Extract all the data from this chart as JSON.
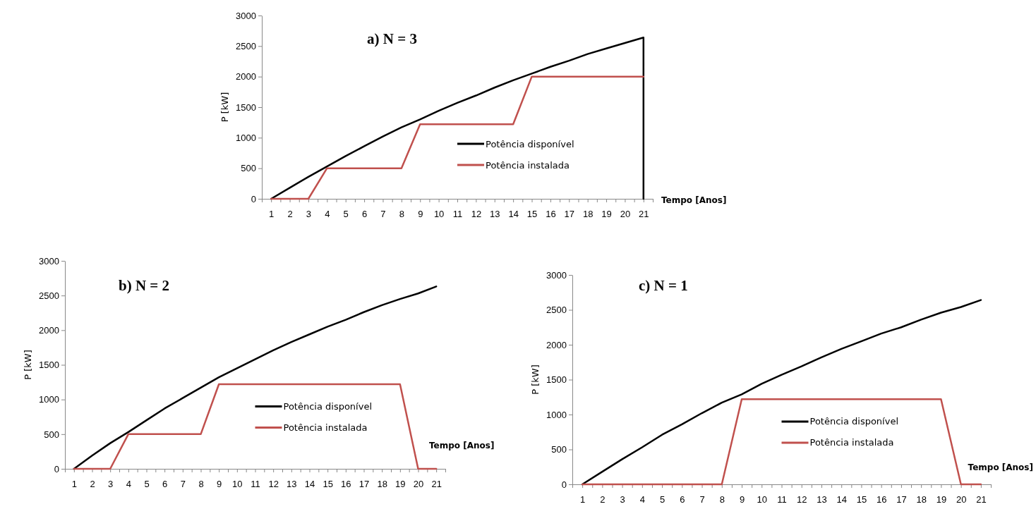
{
  "chart_data": [
    {
      "type": "line",
      "title": "a) N = 3",
      "xlabel": "Tempo [Anos]",
      "ylabel": "P [kW]",
      "xlim": [
        0.5,
        21.5
      ],
      "ylim": [
        0,
        3000
      ],
      "xticks": [
        1,
        2,
        3,
        4,
        5,
        6,
        7,
        8,
        9,
        10,
        11,
        12,
        13,
        14,
        15,
        16,
        17,
        18,
        19,
        20,
        21,
        {
          "value": 0.5,
          "label": null
        },
        {
          "value": 1.5,
          "label": null
        },
        {
          "value": 2.5,
          "label": null
        },
        {
          "value": 3.5,
          "label": null
        },
        {
          "value": 4.5,
          "label": null
        },
        {
          "value": 5.5,
          "label": null
        },
        {
          "value": 6.5,
          "label": null
        },
        {
          "value": 7.5,
          "label": null
        },
        {
          "value": 8.5,
          "label": null
        },
        {
          "value": 9.5,
          "label": null
        },
        {
          "value": 10.5,
          "label": null
        },
        {
          "value": 11.5,
          "label": null
        },
        {
          "value": 12.5,
          "label": null
        },
        {
          "value": 13.5,
          "label": null
        },
        {
          "value": 14.5,
          "label": null
        },
        {
          "value": 15.5,
          "label": null
        },
        {
          "value": 16.5,
          "label": null
        },
        {
          "value": 17.5,
          "label": null
        },
        {
          "value": 18.5,
          "label": null
        },
        {
          "value": 19.5,
          "label": null
        },
        {
          "value": 20.5,
          "label": null
        },
        {
          "value": 21.5,
          "label": null
        }
      ],
      "yticks": [
        0,
        500,
        1000,
        1500,
        2000,
        2500,
        3000
      ],
      "legend": "bottom right",
      "grid": false,
      "series": [
        {
          "name": "Potência disponível",
          "color": "#000000",
          "x": [
            1,
            2,
            3,
            4,
            5,
            6,
            7,
            8,
            9,
            10,
            11,
            12,
            13,
            14,
            15,
            16,
            17,
            18,
            19,
            20,
            21,
            21
          ],
          "values": [
            0,
            180,
            360,
            530,
            700,
            860,
            1020,
            1170,
            1300,
            1440,
            1570,
            1690,
            1820,
            1940,
            2050,
            2160,
            2260,
            2370,
            2460,
            2550,
            2640,
            0
          ]
        },
        {
          "name": "Potência instalada",
          "color": "#c0504d",
          "x": [
            1,
            2,
            3,
            4,
            5,
            6,
            7,
            8,
            9,
            10,
            11,
            12,
            13,
            14,
            15,
            16,
            17,
            18,
            19,
            20,
            21
          ],
          "values": [
            0,
            0,
            0,
            500,
            500,
            500,
            500,
            500,
            1220,
            1220,
            1220,
            1220,
            1220,
            1220,
            2000,
            2000,
            2000,
            2000,
            2000,
            2000,
            2000
          ]
        }
      ]
    },
    {
      "type": "line",
      "title": "b) N = 2",
      "xlabel": "Tempo [Anos]",
      "ylabel": "P [kW]",
      "xlim": [
        0.5,
        21.5
      ],
      "ylim": [
        0,
        3000
      ],
      "xticks": [
        1,
        2,
        3,
        4,
        5,
        6,
        7,
        8,
        9,
        10,
        11,
        12,
        13,
        14,
        15,
        16,
        17,
        18,
        19,
        20,
        21,
        {
          "value": 0.5,
          "label": null
        },
        {
          "value": 1.5,
          "label": null
        },
        {
          "value": 2.5,
          "label": null
        },
        {
          "value": 3.5,
          "label": null
        },
        {
          "value": 4.5,
          "label": null
        },
        {
          "value": 5.5,
          "label": null
        },
        {
          "value": 6.5,
          "label": null
        },
        {
          "value": 7.5,
          "label": null
        },
        {
          "value": 8.5,
          "label": null
        },
        {
          "value": 9.5,
          "label": null
        },
        {
          "value": 10.5,
          "label": null
        },
        {
          "value": 11.5,
          "label": null
        },
        {
          "value": 12.5,
          "label": null
        },
        {
          "value": 13.5,
          "label": null
        },
        {
          "value": 14.5,
          "label": null
        },
        {
          "value": 15.5,
          "label": null
        },
        {
          "value": 16.5,
          "label": null
        },
        {
          "value": 17.5,
          "label": null
        },
        {
          "value": 18.5,
          "label": null
        },
        {
          "value": 19.5,
          "label": null
        },
        {
          "value": 20.5,
          "label": null
        },
        {
          "value": 21.5,
          "label": null
        }
      ],
      "yticks": [
        0,
        500,
        1000,
        1500,
        2000,
        2500,
        3000
      ],
      "legend": "bottom right",
      "grid": false,
      "series": [
        {
          "name": "Potência disponível",
          "color": "#000000",
          "x": [
            1,
            2,
            3,
            4,
            5,
            6,
            7,
            8,
            9,
            10,
            11,
            12,
            13,
            14,
            15,
            16,
            17,
            18,
            19,
            20,
            21
          ],
          "values": [
            0,
            190,
            370,
            530,
            700,
            870,
            1020,
            1170,
            1320,
            1450,
            1580,
            1710,
            1830,
            1940,
            2050,
            2150,
            2260,
            2360,
            2450,
            2530,
            2630
          ]
        },
        {
          "name": "Potência instalada",
          "color": "#c0504d",
          "x": [
            1,
            2,
            3,
            4,
            5,
            6,
            7,
            8,
            9,
            10,
            11,
            12,
            13,
            14,
            15,
            16,
            17,
            18,
            19,
            20,
            21
          ],
          "values": [
            0,
            0,
            0,
            500,
            500,
            500,
            500,
            500,
            1220,
            1220,
            1220,
            1220,
            1220,
            1220,
            1220,
            1220,
            1220,
            1220,
            1220,
            0,
            0
          ]
        }
      ]
    },
    {
      "type": "line",
      "title": "c) N = 1",
      "xlabel": "Tempo [Anos]",
      "ylabel": "P [kW]",
      "xlim": [
        0.5,
        21.5
      ],
      "ylim": [
        0,
        3000
      ],
      "xticks": [
        1,
        2,
        3,
        4,
        5,
        6,
        7,
        8,
        9,
        10,
        11,
        12,
        13,
        14,
        15,
        16,
        17,
        18,
        19,
        20,
        21,
        {
          "value": 0.5,
          "label": null
        },
        {
          "value": 1.5,
          "label": null
        },
        {
          "value": 2.5,
          "label": null
        },
        {
          "value": 3.5,
          "label": null
        },
        {
          "value": 4.5,
          "label": null
        },
        {
          "value": 5.5,
          "label": null
        },
        {
          "value": 6.5,
          "label": null
        },
        {
          "value": 7.5,
          "label": null
        },
        {
          "value": 8.5,
          "label": null
        },
        {
          "value": 9.5,
          "label": null
        },
        {
          "value": 10.5,
          "label": null
        },
        {
          "value": 11.5,
          "label": null
        },
        {
          "value": 12.5,
          "label": null
        },
        {
          "value": 13.5,
          "label": null
        },
        {
          "value": 14.5,
          "label": null
        },
        {
          "value": 15.5,
          "label": null
        },
        {
          "value": 16.5,
          "label": null
        },
        {
          "value": 17.5,
          "label": null
        },
        {
          "value": 18.5,
          "label": null
        },
        {
          "value": 19.5,
          "label": null
        },
        {
          "value": 20.5,
          "label": null
        },
        {
          "value": 21.5,
          "label": null
        }
      ],
      "yticks": [
        0,
        500,
        1000,
        1500,
        2000,
        2500,
        3000
      ],
      "legend": "bottom right",
      "grid": false,
      "series": [
        {
          "name": "Potência disponível",
          "color": "#000000",
          "x": [
            1,
            2,
            3,
            4,
            5,
            6,
            7,
            8,
            9,
            10,
            11,
            12,
            13,
            14,
            15,
            16,
            17,
            18,
            19,
            20,
            21
          ],
          "values": [
            0,
            180,
            360,
            530,
            710,
            860,
            1020,
            1170,
            1290,
            1440,
            1570,
            1690,
            1820,
            1940,
            2050,
            2160,
            2250,
            2360,
            2460,
            2540,
            2640
          ]
        },
        {
          "name": "Potência instalada",
          "color": "#c0504d",
          "x": [
            1,
            2,
            3,
            4,
            5,
            6,
            7,
            8,
            9,
            10,
            11,
            12,
            13,
            14,
            15,
            16,
            17,
            18,
            19,
            20,
            21
          ],
          "values": [
            0,
            0,
            0,
            0,
            0,
            0,
            0,
            0,
            1220,
            1220,
            1220,
            1220,
            1220,
            1220,
            1220,
            1220,
            1220,
            1220,
            1220,
            0,
            0
          ]
        }
      ]
    }
  ]
}
